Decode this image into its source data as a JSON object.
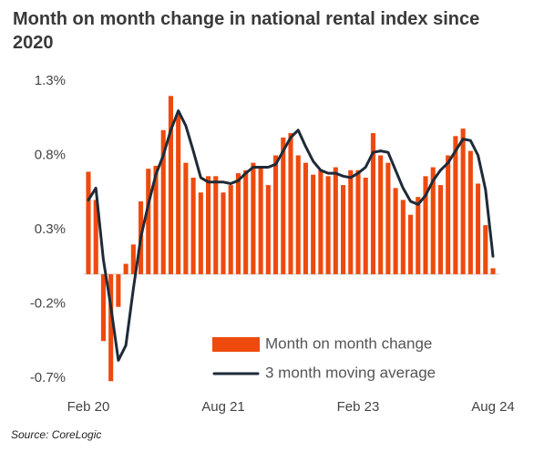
{
  "chart_data": {
    "type": "bar",
    "title": "Month on month change in national rental index since 2020",
    "source": "Source: CoreLogic",
    "categories": [
      "Feb 20",
      null,
      null,
      null,
      null,
      null,
      null,
      null,
      null,
      null,
      null,
      null,
      null,
      null,
      null,
      null,
      null,
      null,
      "Aug 21",
      null,
      null,
      null,
      null,
      null,
      null,
      null,
      null,
      null,
      null,
      null,
      null,
      null,
      null,
      null,
      null,
      null,
      "Feb 23",
      null,
      null,
      null,
      null,
      null,
      null,
      null,
      null,
      null,
      null,
      null,
      null,
      null,
      null,
      null,
      null,
      null,
      "Aug 24"
    ],
    "ylim": [
      -0.7,
      1.3
    ],
    "yticks": [
      {
        "value": 1.3,
        "label": "1.3%"
      },
      {
        "value": 0.8,
        "label": "0.8%"
      },
      {
        "value": 0.3,
        "label": "0.3%"
      },
      {
        "value": -0.2,
        "label": "-0.2%"
      },
      {
        "value": -0.7,
        "label": "-0.7%"
      }
    ],
    "grid": false,
    "legend": "lower right",
    "series": [
      {
        "name": "Month on month change",
        "type": "bar",
        "color": "#ee4a0e",
        "values": [
          0.69,
          0.5,
          -0.45,
          -0.72,
          -0.22,
          0.07,
          0.2,
          0.49,
          0.71,
          0.73,
          0.97,
          1.2,
          1.08,
          0.75,
          0.65,
          0.55,
          0.66,
          0.66,
          0.55,
          0.6,
          0.68,
          0.7,
          0.75,
          0.72,
          0.6,
          0.8,
          0.92,
          0.95,
          0.8,
          0.75,
          0.67,
          0.7,
          0.66,
          0.72,
          0.6,
          0.7,
          0.7,
          0.65,
          0.95,
          0.8,
          0.75,
          0.58,
          0.5,
          0.4,
          0.52,
          0.66,
          0.72,
          0.6,
          0.8,
          0.93,
          0.98,
          0.83,
          0.61,
          0.33,
          0.04
        ]
      },
      {
        "name": "3 month moving average",
        "type": "line",
        "color": "#1e2b38",
        "values": [
          0.5,
          0.58,
          0.1,
          -0.22,
          -0.58,
          -0.48,
          -0.1,
          0.25,
          0.47,
          0.67,
          0.8,
          0.97,
          1.1,
          1.0,
          0.83,
          0.65,
          0.62,
          0.62,
          0.62,
          0.61,
          0.63,
          0.68,
          0.72,
          0.72,
          0.72,
          0.74,
          0.83,
          0.92,
          0.97,
          0.86,
          0.76,
          0.7,
          0.68,
          0.68,
          0.66,
          0.65,
          0.68,
          0.72,
          0.82,
          0.83,
          0.82,
          0.7,
          0.58,
          0.49,
          0.47,
          0.53,
          0.63,
          0.7,
          0.75,
          0.83,
          0.91,
          0.9,
          0.8,
          0.57,
          0.12
        ]
      }
    ]
  }
}
